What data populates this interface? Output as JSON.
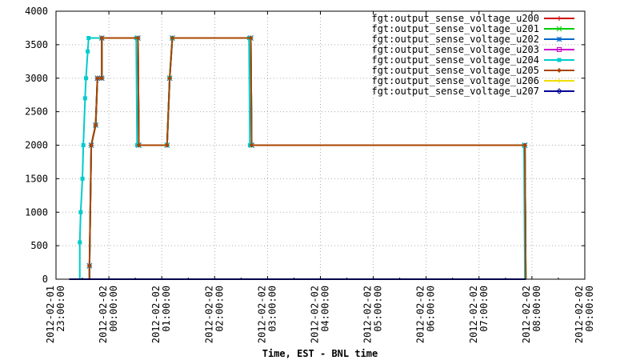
{
  "chart_data": {
    "type": "line",
    "xlabel": "Time, EST - BNL time",
    "ylabel": "",
    "ylim": [
      0,
      4000
    ],
    "y_ticks": [
      "0",
      "500",
      "1000",
      "1500",
      "2000",
      "2500",
      "3000",
      "3500",
      "4000"
    ],
    "y_tick_values": [
      0,
      500,
      1000,
      1500,
      2000,
      2500,
      3000,
      3500,
      4000
    ],
    "x_range": [
      "2012-02-01 23:00:00",
      "2012-02-02 09:00:00"
    ],
    "x_ticks": [
      {
        "value": "2012-02-01 23:00:00",
        "date": "2012-02-01",
        "time": "23:00:00"
      },
      {
        "value": "2012-02-02 00:00:00",
        "date": "2012-02-02",
        "time": "00:00:00"
      },
      {
        "value": "2012-02-02 01:00:00",
        "date": "2012-02-02",
        "time": "01:00:00"
      },
      {
        "value": "2012-02-02 02:00:00",
        "date": "2012-02-02",
        "time": "02:00:00"
      },
      {
        "value": "2012-02-02 03:00:00",
        "date": "2012-02-02",
        "time": "03:00:00"
      },
      {
        "value": "2012-02-02 04:00:00",
        "date": "2012-02-02",
        "time": "04:00:00"
      },
      {
        "value": "2012-02-02 05:00:00",
        "date": "2012-02-02",
        "time": "05:00:00"
      },
      {
        "value": "2012-02-02 06:00:00",
        "date": "2012-02-02",
        "time": "06:00:00"
      },
      {
        "value": "2012-02-02 07:00:00",
        "date": "2012-02-02",
        "time": "07:00:00"
      },
      {
        "value": "2012-02-02 08:00:00",
        "date": "2012-02-02",
        "time": "08:00:00"
      },
      {
        "value": "2012-02-02 09:00:00",
        "date": "2012-02-02",
        "time": "09:00:00"
      }
    ],
    "grid": true,
    "legend_position": "top-right",
    "series": [
      {
        "name": "fgt:output_sense_voltage_u200",
        "color": "#cc0000",
        "marker": "plus",
        "points": [
          [
            "2012-02-01 23:15:00",
            0
          ],
          [
            "2012-02-01 23:38:00",
            0
          ],
          [
            "2012-02-01 23:38:00",
            200
          ],
          [
            "2012-02-01 23:40:00",
            2000
          ],
          [
            "2012-02-01 23:45:00",
            2300
          ],
          [
            "2012-02-01 23:47:00",
            3000
          ],
          [
            "2012-02-01 23:52:00",
            3000
          ],
          [
            "2012-02-01 23:52:00",
            3600
          ],
          [
            "2012-02-02 00:33:00",
            3600
          ],
          [
            "2012-02-02 00:34:00",
            2000
          ],
          [
            "2012-02-02 01:06:00",
            2000
          ],
          [
            "2012-02-02 01:09:00",
            3000
          ],
          [
            "2012-02-02 01:12:00",
            3600
          ],
          [
            "2012-02-02 02:41:00",
            3600
          ],
          [
            "2012-02-02 02:42:00",
            2000
          ],
          [
            "2012-02-02 07:52:00",
            2000
          ],
          [
            "2012-02-02 07:53:00",
            0
          ]
        ]
      },
      {
        "name": "fgt:output_sense_voltage_u201",
        "color": "#00cc00",
        "marker": "x",
        "points": [
          [
            "2012-02-01 23:15:00",
            0
          ],
          [
            "2012-02-01 23:38:00",
            0
          ],
          [
            "2012-02-01 23:38:00",
            200
          ],
          [
            "2012-02-01 23:40:00",
            2000
          ],
          [
            "2012-02-01 23:45:00",
            2300
          ],
          [
            "2012-02-01 23:47:00",
            3000
          ],
          [
            "2012-02-01 23:52:00",
            3000
          ],
          [
            "2012-02-01 23:52:00",
            3600
          ],
          [
            "2012-02-02 00:33:00",
            3600
          ],
          [
            "2012-02-02 00:34:00",
            2000
          ],
          [
            "2012-02-02 01:06:00",
            2000
          ],
          [
            "2012-02-02 01:09:00",
            3000
          ],
          [
            "2012-02-02 01:12:00",
            3600
          ],
          [
            "2012-02-02 02:41:00",
            3600
          ],
          [
            "2012-02-02 02:42:00",
            2000
          ],
          [
            "2012-02-02 07:52:00",
            2000
          ],
          [
            "2012-02-02 07:53:00",
            0
          ]
        ]
      },
      {
        "name": "fgt:output_sense_voltage_u202",
        "color": "#0066cc",
        "marker": "star",
        "points": [
          [
            "2012-02-01 23:15:00",
            0
          ],
          [
            "2012-02-01 23:38:00",
            0
          ],
          [
            "2012-02-01 23:38:00",
            200
          ],
          [
            "2012-02-01 23:40:00",
            2000
          ],
          [
            "2012-02-01 23:45:00",
            2300
          ],
          [
            "2012-02-01 23:47:00",
            3000
          ],
          [
            "2012-02-01 23:52:00",
            3000
          ],
          [
            "2012-02-01 23:52:00",
            3600
          ],
          [
            "2012-02-02 00:33:00",
            3600
          ],
          [
            "2012-02-02 00:34:00",
            2000
          ],
          [
            "2012-02-02 01:06:00",
            2000
          ],
          [
            "2012-02-02 01:09:00",
            3000
          ],
          [
            "2012-02-02 01:12:00",
            3600
          ],
          [
            "2012-02-02 02:41:00",
            3600
          ],
          [
            "2012-02-02 02:42:00",
            2000
          ],
          [
            "2012-02-02 07:52:00",
            2000
          ],
          [
            "2012-02-02 07:53:00",
            0
          ]
        ]
      },
      {
        "name": "fgt:output_sense_voltage_u203",
        "color": "#cc00cc",
        "marker": "square-open",
        "points": [
          [
            "2012-02-01 23:15:00",
            0
          ],
          [
            "2012-02-02 07:53:00",
            0
          ]
        ]
      },
      {
        "name": "fgt:output_sense_voltage_u204",
        "color": "#00cccc",
        "marker": "square",
        "points": [
          [
            "2012-02-01 23:15:00",
            0
          ],
          [
            "2012-02-01 23:27:00",
            0
          ],
          [
            "2012-02-01 23:27:00",
            550
          ],
          [
            "2012-02-01 23:28:00",
            1000
          ],
          [
            "2012-02-01 23:30:00",
            1500
          ],
          [
            "2012-02-01 23:31:00",
            2000
          ],
          [
            "2012-02-01 23:33:00",
            2700
          ],
          [
            "2012-02-01 23:34:00",
            3000
          ],
          [
            "2012-02-01 23:36:00",
            3400
          ],
          [
            "2012-02-01 23:37:00",
            3600
          ],
          [
            "2012-02-02 00:31:00",
            3600
          ],
          [
            "2012-02-02 00:32:00",
            2000
          ],
          [
            "2012-02-02 01:06:00",
            2000
          ],
          [
            "2012-02-02 01:09:00",
            3000
          ],
          [
            "2012-02-02 01:12:00",
            3600
          ],
          [
            "2012-02-02 02:39:00",
            3600
          ],
          [
            "2012-02-02 02:40:00",
            2000
          ],
          [
            "2012-02-02 07:51:00",
            2000
          ],
          [
            "2012-02-02 07:52:00",
            0
          ]
        ]
      },
      {
        "name": "fgt:output_sense_voltage_u205",
        "color": "#aa4400",
        "marker": "diamond",
        "points": [
          [
            "2012-02-01 23:15:00",
            0
          ],
          [
            "2012-02-01 23:38:00",
            0
          ],
          [
            "2012-02-01 23:38:00",
            200
          ],
          [
            "2012-02-01 23:40:00",
            2000
          ],
          [
            "2012-02-01 23:45:00",
            2300
          ],
          [
            "2012-02-01 23:47:00",
            3000
          ],
          [
            "2012-02-01 23:52:00",
            3000
          ],
          [
            "2012-02-01 23:52:00",
            3600
          ],
          [
            "2012-02-02 00:33:00",
            3600
          ],
          [
            "2012-02-02 00:34:00",
            2000
          ],
          [
            "2012-02-02 01:06:00",
            2000
          ],
          [
            "2012-02-02 01:09:00",
            3000
          ],
          [
            "2012-02-02 01:12:00",
            3600
          ],
          [
            "2012-02-02 02:41:00",
            3600
          ],
          [
            "2012-02-02 02:42:00",
            2000
          ],
          [
            "2012-02-02 07:52:00",
            2000
          ],
          [
            "2012-02-02 07:53:00",
            0
          ]
        ]
      },
      {
        "name": "fgt:output_sense_voltage_u206",
        "color": "#eedd00",
        "marker": "plus",
        "points": [
          [
            "2012-02-01 23:15:00",
            0
          ],
          [
            "2012-02-02 07:53:00",
            0
          ]
        ]
      },
      {
        "name": "fgt:output_sense_voltage_u207",
        "color": "#000099",
        "marker": "diamond-open",
        "points": [
          [
            "2012-02-01 23:15:00",
            0
          ],
          [
            "2012-02-02 07:53:00",
            0
          ]
        ]
      }
    ]
  }
}
